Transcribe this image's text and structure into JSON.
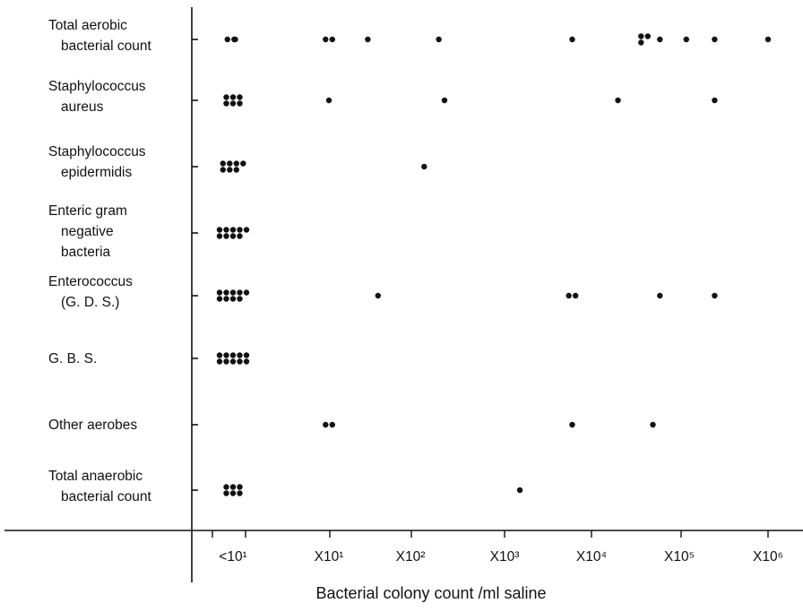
{
  "chart_data": {
    "type": "scatter",
    "xlabel": "Bacterial colony count /ml saline",
    "x_ticks": [
      "<10¹",
      "X10¹",
      "X10²",
      "X10³",
      "X10⁴",
      "X10⁵",
      "X10⁶"
    ],
    "x_scale": "log",
    "categories": [
      {
        "label_lines": [
          "Total aerobic",
          "bacterial count"
        ]
      },
      {
        "label_lines": [
          "Staphylococcus",
          "aureus"
        ]
      },
      {
        "label_lines": [
          "Staphylococcus",
          "epidermidis"
        ]
      },
      {
        "label_lines": [
          "Enteric gram",
          "negative",
          "bacteria"
        ]
      },
      {
        "label_lines": [
          "Enterococcus",
          "(G. D. S.)"
        ]
      },
      {
        "label_lines": [
          "G. B. S."
        ]
      },
      {
        "label_lines": [
          "Other aerobes"
        ]
      },
      {
        "label_lines": [
          "Total anaerobic",
          "bacterial count"
        ]
      }
    ],
    "points": [
      {
        "category": 0,
        "x": 0.9,
        "n": 2
      },
      {
        "category": 0,
        "x": 1.1,
        "n": 1
      },
      {
        "category": 0,
        "x": 10,
        "n": 2
      },
      {
        "category": 0,
        "x": 30,
        "n": 1
      },
      {
        "category": 0,
        "x": 200,
        "n": 1
      },
      {
        "category": 0,
        "x": 6000,
        "n": 1
      },
      {
        "category": 0,
        "x": 40000,
        "n": 3
      },
      {
        "category": 0,
        "x": 60000,
        "n": 1
      },
      {
        "category": 0,
        "x": 120000,
        "n": 1
      },
      {
        "category": 0,
        "x": 250000,
        "n": 1
      },
      {
        "category": 0,
        "x": 1000000,
        "n": 1
      },
      {
        "category": 1,
        "x": 1,
        "n": 6
      },
      {
        "category": 1,
        "x": 10,
        "n": 1
      },
      {
        "category": 1,
        "x": 230,
        "n": 1
      },
      {
        "category": 1,
        "x": 20000,
        "n": 1
      },
      {
        "category": 1,
        "x": 250000,
        "n": 1
      },
      {
        "category": 2,
        "x": 1,
        "n": 7
      },
      {
        "category": 2,
        "x": 140,
        "n": 1
      },
      {
        "category": 3,
        "x": 1,
        "n": 9
      },
      {
        "category": 4,
        "x": 1,
        "n": 9
      },
      {
        "category": 4,
        "x": 40,
        "n": 1
      },
      {
        "category": 4,
        "x": 6000,
        "n": 2
      },
      {
        "category": 4,
        "x": 60000,
        "n": 1
      },
      {
        "category": 4,
        "x": 250000,
        "n": 1
      },
      {
        "category": 5,
        "x": 1,
        "n": 10
      },
      {
        "category": 6,
        "x": 10,
        "n": 2
      },
      {
        "category": 6,
        "x": 6000,
        "n": 1
      },
      {
        "category": 6,
        "x": 50000,
        "n": 1
      },
      {
        "category": 7,
        "x": 1,
        "n": 6
      },
      {
        "category": 7,
        "x": 1500,
        "n": 1
      }
    ]
  }
}
